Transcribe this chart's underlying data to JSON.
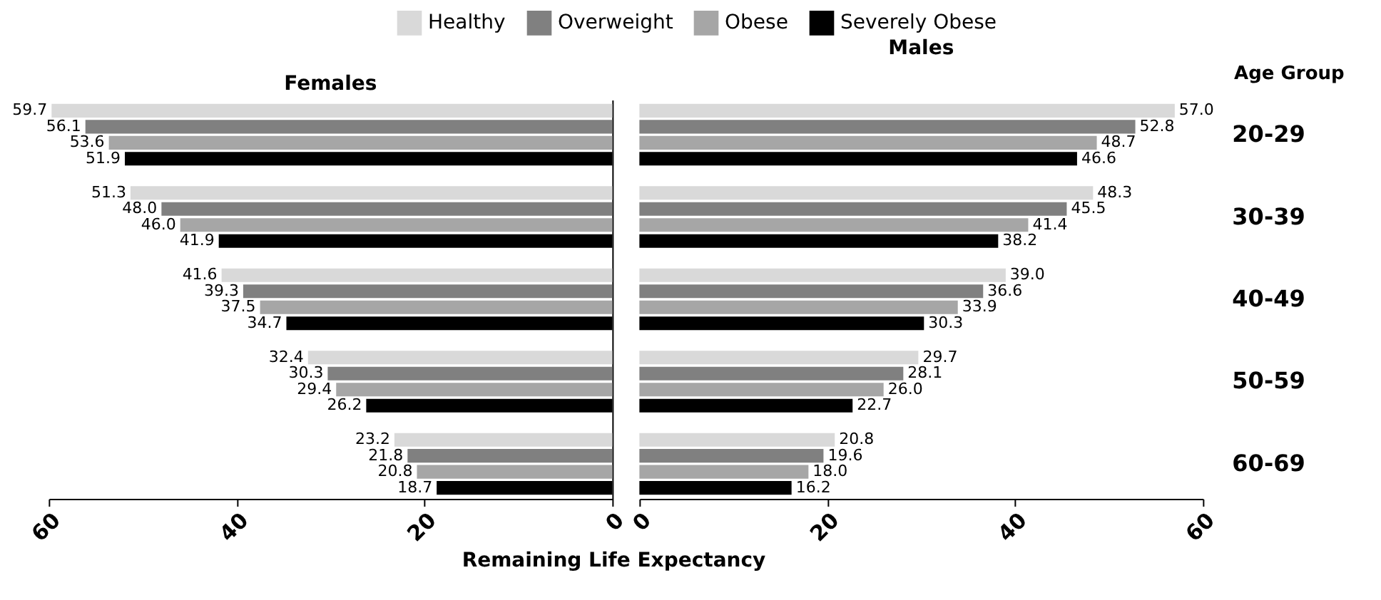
{
  "chart_data": [
    {
      "type": "bar",
      "orientation": "horizontal",
      "title": "Females",
      "xlabel": "Remaining Life Expectancy",
      "categories": [
        null,
        null,
        null,
        null,
        null
      ],
      "xlim": [
        60,
        0
      ],
      "xticks": [
        60,
        40,
        20,
        0
      ],
      "tick_labels": "x",
      "legend": "top",
      "grid": false,
      "series": [
        {
          "name": "Healthy",
          "color": "#d9d9d9",
          "values": [
            59.7,
            51.3,
            41.6,
            32.4,
            23.2
          ],
          "value_labels": [
            "59.7",
            "51.3",
            "41.6",
            "32.4",
            "23.2"
          ]
        },
        {
          "name": "Overweight",
          "color": "#808080",
          "values": [
            56.1,
            48.0,
            39.3,
            30.3,
            21.8
          ],
          "value_labels": [
            "56.1",
            "48.0",
            "39.3",
            "30.3",
            "21.8"
          ]
        },
        {
          "name": "Obese",
          "color": "#a6a6a6",
          "values": [
            53.6,
            46.0,
            37.5,
            29.4,
            20.8
          ],
          "value_labels": [
            "53.6",
            "46.0",
            "37.5",
            "29.4",
            "20.8"
          ]
        },
        {
          "name": "Severely Obese",
          "color": "#000000",
          "values": [
            51.9,
            41.9,
            34.7,
            26.2,
            18.7
          ],
          "value_labels": [
            "51.9",
            "41.9",
            "34.7",
            "26.2",
            "18.7"
          ]
        }
      ]
    },
    {
      "type": "bar",
      "orientation": "horizontal",
      "title": "Males",
      "ylabel": "Age Group",
      "categories": [
        "20-29",
        "30-39",
        "40-49",
        "50-59",
        "60-69"
      ],
      "xlim": [
        0,
        60
      ],
      "xticks": [
        0,
        20,
        40,
        60
      ],
      "grid": false,
      "series": [
        {
          "color": "#d9d9d9",
          "values": [
            57.0,
            48.3,
            39.0,
            29.7,
            20.8
          ],
          "value_labels": [
            "57.0",
            "48.3",
            "39.0",
            "29.7",
            "20.8"
          ]
        },
        {
          "color": "#808080",
          "values": [
            52.8,
            45.5,
            36.6,
            28.1,
            19.6
          ],
          "value_labels": [
            "52.8",
            "45.5",
            "36.6",
            "28.1",
            "19.6"
          ]
        },
        {
          "color": "#a6a6a6",
          "values": [
            48.7,
            41.4,
            33.9,
            26.0,
            18.0
          ],
          "value_labels": [
            "48.7",
            "41.4",
            "33.9",
            "26.0",
            "18.0"
          ]
        },
        {
          "color": "#000000",
          "values": [
            46.6,
            38.2,
            30.3,
            22.7,
            16.2
          ],
          "value_labels": [
            "46.6",
            "38.2",
            "30.3",
            "22.7",
            "16.2"
          ]
        }
      ]
    }
  ]
}
